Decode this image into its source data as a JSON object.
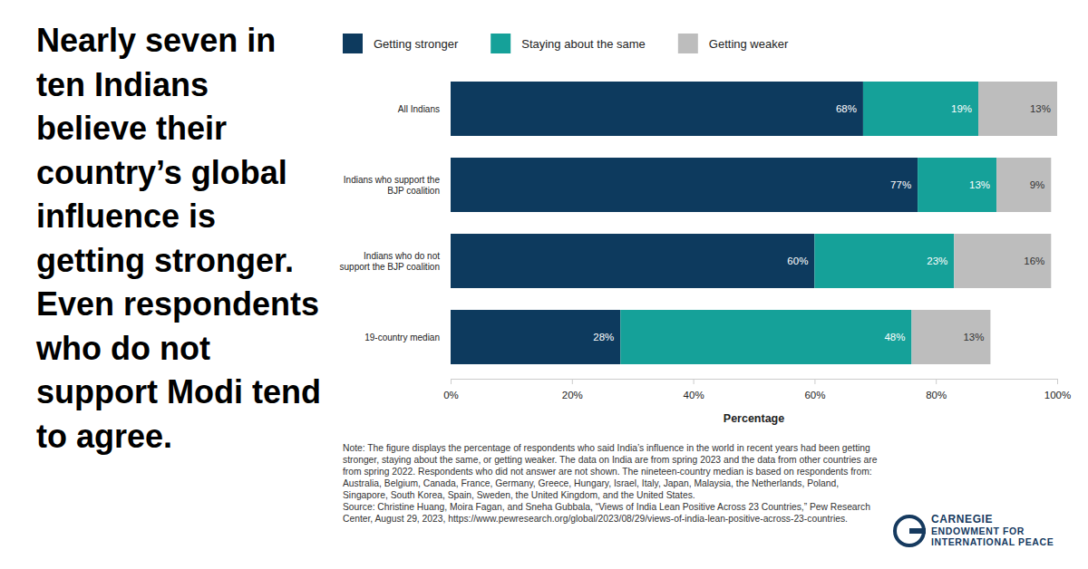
{
  "chart_data": {
    "type": "bar",
    "orientation": "horizontal",
    "stacked": true,
    "data_labels": true,
    "grid": false,
    "legend": "top",
    "title": "Nearly seven in ten Indians believe their country’s global influence is getting stronger. Even respondents who do not support Modi tend to agree.",
    "xlabel": "Percentage",
    "categories": [
      "All Indians",
      "Indians who support the BJP coalition",
      "Indians who do not support the BJP coalition",
      "19-country median"
    ],
    "series": [
      {
        "name": "Getting stronger",
        "color": "#0d3a5e",
        "values": [
          68,
          77,
          60,
          28
        ],
        "value_labels": [
          "68%",
          "77%",
          "60%",
          "28%"
        ]
      },
      {
        "name": "Staying about the same",
        "color": "#15a199",
        "values": [
          19,
          13,
          23,
          48
        ],
        "value_labels": [
          "19%",
          "13%",
          "23%",
          "48%"
        ]
      },
      {
        "name": "Getting weaker",
        "color": "#bdbdbd",
        "values": [
          13,
          9,
          16,
          13
        ],
        "value_labels": [
          "13%",
          "9%",
          "16%",
          "13%"
        ]
      }
    ],
    "xlim": [
      0,
      100
    ],
    "xticks": [
      {
        "value": 0,
        "label": "0%"
      },
      {
        "value": 20,
        "label": "20%"
      },
      {
        "value": 40,
        "label": "40%"
      },
      {
        "value": 60,
        "label": "60%"
      },
      {
        "value": 80,
        "label": "80%"
      },
      {
        "value": 100,
        "label": "100%"
      }
    ],
    "annotations": [
      "Note: The figure displays the percentage of respondents who said India’s influence in the world in recent years had been getting stronger, staying about the same, or getting weaker. The data on India are from spring 2023 and the data from other countries are from spring 2022. Respondents who did not answer are not shown. The nineteen-country median is based on respondents from: Australia, Belgium, Canada, France, Germany, Greece, Hungary, Israel, Italy, Japan, Malaysia, the Netherlands, Poland, Singapore, South Korea, Spain, Sweden, the United Kingdom, and the United States.",
      "Source: Christine Huang, Moira Fagan, and Sneha Gubbala, “Views of India Lean Positive Across 23 Countries,” Pew Research Center, August 29, 2023, https://www.pewresearch.org/global/2023/08/29/views-of-india-lean-positive-across-23-countries.",
      "CARNEGIE",
      "ENDOWMENT FOR",
      "INTERNATIONAL PEACE"
    ]
  }
}
